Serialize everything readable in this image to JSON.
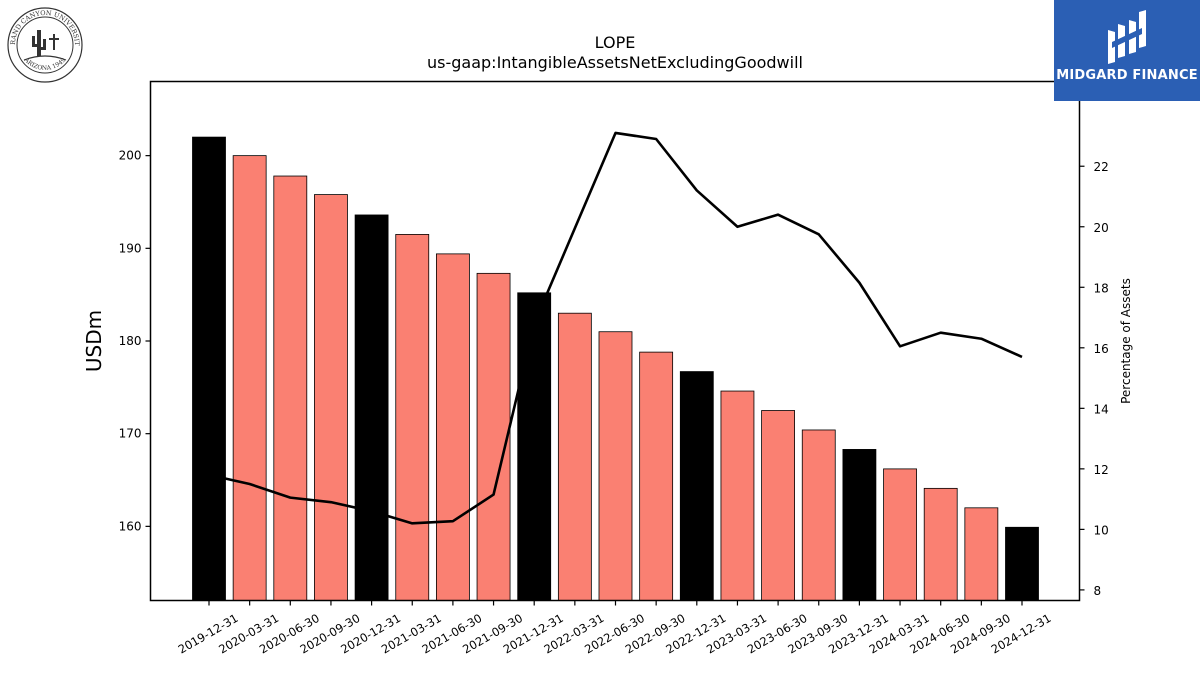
{
  "header": {
    "ticker": "LOPE",
    "metric": "us-gaap:IntangibleAssetsNetExcludingGoodwill"
  },
  "logos": {
    "university_seal_text": "GRAND CANYON UNIVERSITY · ARIZONA 1949",
    "brand_name": "MIDGARD FINANCE"
  },
  "colors": {
    "bar_annual": "#000000",
    "bar_quarterly": "#fa8072",
    "line": "#000000",
    "brand_bg": "#2b5fb4"
  },
  "chart_data": {
    "type": "bar",
    "title": "LOPE",
    "subtitle": "us-gaap:IntangibleAssetsNetExcludingGoodwill",
    "ylabel": "USDm",
    "y2label": "Percentage of Assets",
    "ylim": [
      152,
      208
    ],
    "y2lim": [
      7.65,
      24.8
    ],
    "yticks": [
      160,
      170,
      180,
      190,
      200
    ],
    "y2ticks": [
      8,
      10,
      12,
      14,
      16,
      18,
      20,
      22
    ],
    "grid": false,
    "categories": [
      "2019-12-31",
      "2020-03-31",
      "2020-06-30",
      "2020-09-30",
      "2020-12-31",
      "2021-03-31",
      "2021-06-30",
      "2021-09-30",
      "2021-12-31",
      "2022-03-31",
      "2022-06-30",
      "2022-09-30",
      "2022-12-31",
      "2023-03-31",
      "2023-06-30",
      "2023-09-30",
      "2023-12-31",
      "2024-03-31",
      "2024-06-30",
      "2024-09-30",
      "2024-12-31"
    ],
    "series": [
      {
        "type": "bar",
        "axis": "left",
        "values": [
          202.0,
          200.0,
          197.8,
          195.8,
          193.6,
          191.5,
          189.4,
          187.3,
          185.2,
          183.0,
          181.0,
          178.8,
          176.7,
          174.6,
          172.5,
          170.4,
          168.3,
          166.2,
          164.1,
          162.0,
          159.9
        ],
        "annual": [
          true,
          false,
          false,
          false,
          true,
          false,
          false,
          false,
          true,
          false,
          false,
          false,
          true,
          false,
          false,
          false,
          true,
          false,
          false,
          false,
          true
        ]
      },
      {
        "type": "line",
        "axis": "right",
        "values": [
          11.8,
          11.5,
          11.05,
          10.9,
          10.6,
          10.2,
          10.27,
          11.15,
          16.8,
          19.95,
          23.1,
          22.9,
          21.2,
          20.0,
          20.4,
          19.75,
          18.15,
          16.05,
          16.5,
          16.3,
          15.7
        ]
      }
    ]
  }
}
